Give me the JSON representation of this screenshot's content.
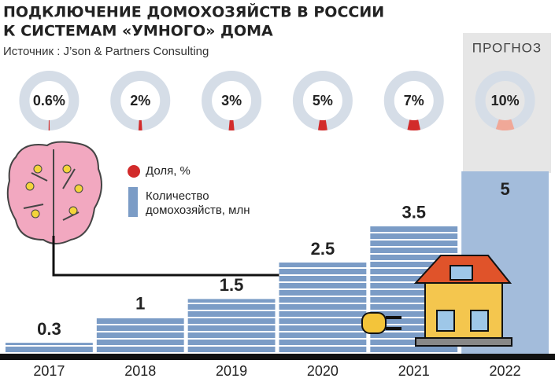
{
  "chart_data": {
    "type": "bar",
    "title": [
      "ПОДКЛЮЧЕНИЕ ДОМОХОЗЯЙСТВ В РОССИИ",
      "К СИСТЕМАМ «УМНОГО» ДОМА"
    ],
    "source": "Источник : J’son & Partners Consulting",
    "categories": [
      "2017",
      "2018",
      "2019",
      "2020",
      "2021",
      "2022"
    ],
    "series": [
      {
        "name": "Доля, %",
        "color": "#d22b2b",
        "values": [
          0.6,
          2,
          3,
          5,
          7,
          10
        ],
        "value_labels": [
          "0.6%",
          "2%",
          "3%",
          "5%",
          "7%",
          "10%"
        ]
      },
      {
        "name": "Количество домохозяйств, млн",
        "color": "#7b9cc6",
        "values": [
          0.3,
          1,
          1.5,
          2.5,
          3.5,
          5
        ]
      }
    ],
    "ylim": [
      0,
      5
    ],
    "forecast": {
      "label": "ПРОГНОЗ",
      "category_index": 5,
      "color": "#a3bcdb",
      "share_color": "#f0a898"
    }
  }
}
